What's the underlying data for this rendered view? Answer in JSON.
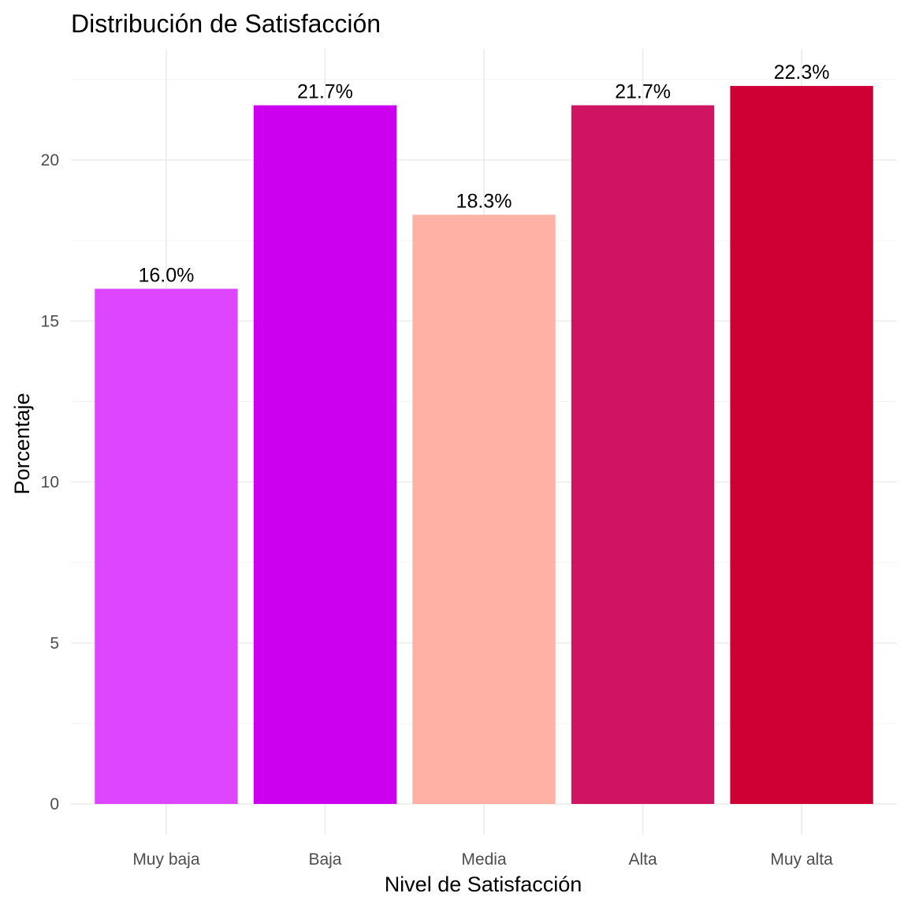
{
  "chart_data": {
    "type": "bar",
    "title": "Distribución de Satisfacción",
    "xlabel": "Nivel de Satisfacción",
    "ylabel": "Porcentaje",
    "categories": [
      "Muy baja",
      "Baja",
      "Media",
      "Alta",
      "Muy alta"
    ],
    "values": [
      16.0,
      21.7,
      18.3,
      21.7,
      22.3
    ],
    "data_labels": [
      "16.0%",
      "21.7%",
      "18.3%",
      "21.7%",
      "22.3%"
    ],
    "colors": [
      "#DD45FF",
      "#CC00EE",
      "#FFB1A5",
      "#CF1462",
      "#CE0034"
    ],
    "ylim": [
      0,
      23.4
    ],
    "yticks": [
      0,
      5,
      10,
      15,
      20
    ],
    "ytick_labels": [
      "0",
      "5",
      "10",
      "15",
      "20"
    ],
    "grid": true,
    "legend": "none"
  }
}
